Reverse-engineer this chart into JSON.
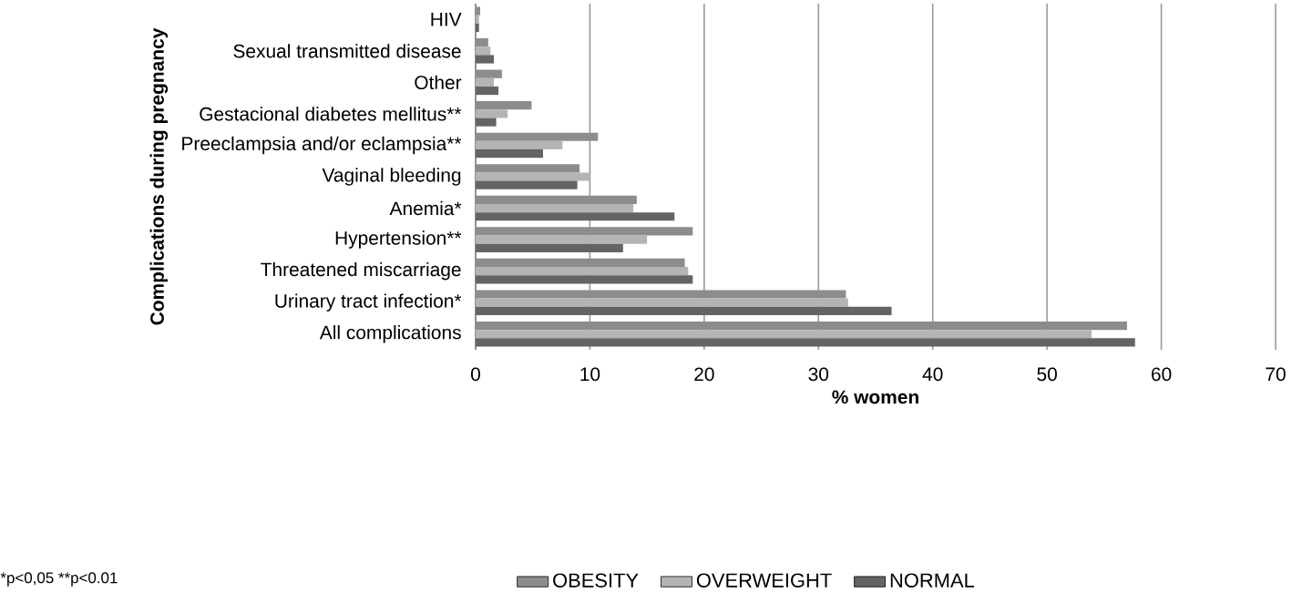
{
  "chart_data": {
    "type": "bar",
    "orientation": "horizontal",
    "categories": [
      "HIV",
      "Sexual transmitted disease",
      "Other",
      "Gestacional diabetes mellitus**",
      "Preeclampsia and/or eclampsia**",
      "Vaginal bleeding",
      "Anemia*",
      "Hypertension**",
      "Threatened miscarriage",
      "Urinary tract infection*",
      "All complications"
    ],
    "series": [
      {
        "name": "OBESITY",
        "color": "#8c8c8c",
        "values": [
          0.4,
          1.1,
          2.3,
          4.9,
          10.7,
          9.1,
          14.1,
          19.0,
          18.3,
          32.4,
          57.0
        ]
      },
      {
        "name": "OVERWEIGHT",
        "color": "#b4b4b4",
        "values": [
          0.3,
          1.3,
          1.6,
          2.8,
          7.6,
          10.0,
          13.8,
          15.0,
          18.6,
          32.6,
          53.9
        ]
      },
      {
        "name": "NORMAL",
        "color": "#646464",
        "values": [
          0.3,
          1.6,
          2.0,
          1.8,
          5.9,
          8.9,
          17.4,
          12.9,
          19.0,
          36.4,
          57.7
        ]
      }
    ],
    "xlabel": "% women",
    "ylabel": "Complications during pregnancy",
    "xlim": [
      0,
      70
    ],
    "xticks": [
      0,
      10,
      20,
      30,
      40,
      50,
      60,
      70
    ],
    "grid": "x",
    "legend": "bottom",
    "annotations": [
      "*p<0,05 **p<0.01"
    ]
  }
}
